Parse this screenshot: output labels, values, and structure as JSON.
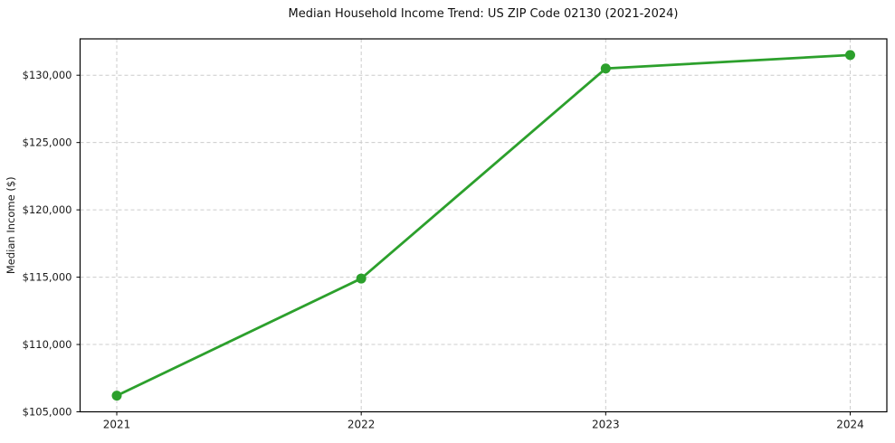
{
  "chart_data": {
    "type": "line",
    "title": "Median Household Income Trend: US ZIP Code 02130 (2021-2024)",
    "xlabel": "",
    "ylabel": "Median Income ($)",
    "x": [
      2021,
      2022,
      2023,
      2024
    ],
    "series": [
      {
        "name": "Median Income",
        "values": [
          106200,
          114900,
          130500,
          131500
        ],
        "color": "#2ca02c",
        "marker": "o",
        "line_width": 2.8,
        "marker_radius": 5.5
      }
    ],
    "xlim": [
      2020.85,
      2024.15
    ],
    "ylim": [
      105000,
      132700
    ],
    "xticks": {
      "values": [
        2021,
        2022,
        2023,
        2024
      ],
      "labels": [
        "2021",
        "2022",
        "2023",
        "2024"
      ]
    },
    "yticks": {
      "values": [
        105000,
        110000,
        115000,
        120000,
        125000,
        130000
      ],
      "labels": [
        "$105,000",
        "$110,000",
        "$115,000",
        "$120,000",
        "$125,000",
        "$130,000"
      ]
    },
    "grid": true,
    "grid_color": "#cccccc",
    "grid_dash": "4 3",
    "spine_color": "#000000",
    "background": "#ffffff",
    "legend": "none"
  }
}
